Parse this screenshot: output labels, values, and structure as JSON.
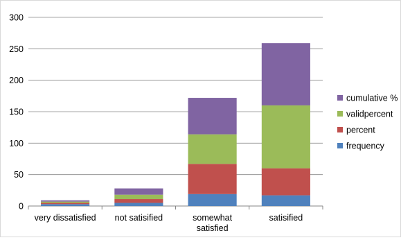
{
  "chart_data": {
    "type": "bar",
    "stacked": true,
    "title": "",
    "xlabel": "",
    "ylabel": "",
    "ylim": [
      0,
      300
    ],
    "yticks": [
      0,
      50,
      100,
      150,
      200,
      250,
      300
    ],
    "grid": true,
    "legend_position": "right",
    "categories": [
      [
        "very dissatisfied"
      ],
      [
        "not satisified"
      ],
      [
        "somewhat",
        "satisfied"
      ],
      [
        "satisified"
      ]
    ],
    "series": [
      {
        "name": "frequency",
        "color": "#4F81BD",
        "values": [
          3,
          5,
          19,
          17
        ]
      },
      {
        "name": "percent",
        "color": "#C0504D",
        "values": [
          2,
          6,
          48,
          43
        ]
      },
      {
        "name": "validpercent",
        "color": "#9BBB59",
        "values": [
          2,
          7,
          47,
          100
        ]
      },
      {
        "name": "cumulative %",
        "color": "#8064A2",
        "values": [
          2,
          10,
          58,
          99
        ]
      }
    ]
  }
}
